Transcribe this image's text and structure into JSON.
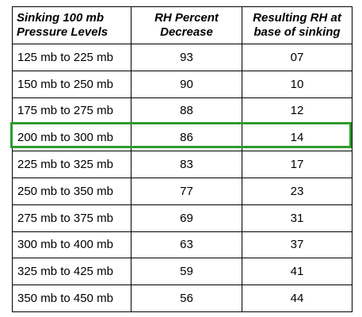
{
  "table": {
    "headers": {
      "col1_line1": "Sinking 100 mb",
      "col1_line2": "Pressure Levels",
      "col2_line1": "RH Percent",
      "col2_line2": "Decrease",
      "col3_line1": "Resulting RH at",
      "col3_line2": "base of sinking"
    },
    "rows": [
      {
        "range": "125 mb to 225 mb",
        "decrease": "93",
        "resulting": "07"
      },
      {
        "range": "150 mb to 250 mb",
        "decrease": "90",
        "resulting": "10"
      },
      {
        "range": "175 mb to 275 mb",
        "decrease": "88",
        "resulting": "12"
      },
      {
        "range": "200 mb to 300 mb",
        "decrease": "86",
        "resulting": "14"
      },
      {
        "range": "225 mb to 325 mb",
        "decrease": "83",
        "resulting": "17"
      },
      {
        "range": "250 mb to 350 mb",
        "decrease": "77",
        "resulting": "23"
      },
      {
        "range": "275 mb to 375 mb",
        "decrease": "69",
        "resulting": "31"
      },
      {
        "range": "300 mb to 400 mb",
        "decrease": "63",
        "resulting": "37"
      },
      {
        "range": "325 mb to 425 mb",
        "decrease": "59",
        "resulting": "41"
      },
      {
        "range": "350 mb to 450 mb",
        "decrease": "56",
        "resulting": "44"
      }
    ],
    "highlighted_row": 3,
    "highlight_color": "#2e9b2e"
  }
}
